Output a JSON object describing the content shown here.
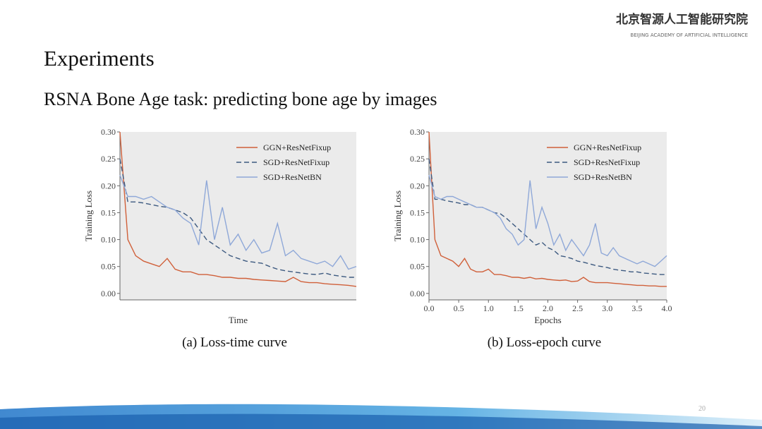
{
  "header": {
    "org": "北京智源人工智能研究院",
    "org_en": "BEIJING ACADEMY OF ARTIFICIAL INTELLIGENCE"
  },
  "title": "Experiments",
  "subtitle": "RSNA Bone Age task: predicting bone age by images",
  "page_number": "20",
  "chart_data": [
    {
      "type": "line",
      "caption": "(a) Loss-time curve",
      "x_label": "Time",
      "y_label": "Training Loss",
      "ylim": [
        -0.012,
        0.3
      ],
      "yticks": [
        {
          "value": 0,
          "label": "0.00"
        },
        {
          "value": 0.05,
          "label": "0.05"
        },
        {
          "value": 0.1,
          "label": "0.10"
        },
        {
          "value": 0.15,
          "label": "0.15"
        },
        {
          "value": 0.2,
          "label": "0.20"
        },
        {
          "value": 0.25,
          "label": "0.25"
        },
        {
          "value": 0.3,
          "label": "0.30"
        }
      ],
      "legend": "upper right",
      "series": [
        {
          "name": "GGN+ResNetFixup",
          "color": "#d0603a",
          "dash": false,
          "values": [
            0.3,
            0.1,
            0.07,
            0.06,
            0.055,
            0.05,
            0.065,
            0.045,
            0.04,
            0.04,
            0.035,
            0.035,
            0.033,
            0.03,
            0.03,
            0.028,
            0.028,
            0.026,
            0.025,
            0.024,
            0.023,
            0.022,
            0.03,
            0.022,
            0.02,
            0.02,
            0.018,
            0.017,
            0.016,
            0.015,
            0.013
          ]
        },
        {
          "name": "SGD+ResNetFixup",
          "color": "#3d5a80",
          "dash": true,
          "values": [
            0.25,
            0.17,
            0.17,
            0.168,
            0.165,
            0.162,
            0.16,
            0.155,
            0.15,
            0.14,
            0.12,
            0.1,
            0.09,
            0.08,
            0.07,
            0.065,
            0.06,
            0.058,
            0.056,
            0.05,
            0.045,
            0.042,
            0.04,
            0.038,
            0.036,
            0.035,
            0.038,
            0.034,
            0.032,
            0.03,
            0.03
          ]
        },
        {
          "name": "SGD+ResNetBN",
          "color": "#8fa8d8",
          "dash": false,
          "values": [
            0.22,
            0.18,
            0.18,
            0.175,
            0.18,
            0.17,
            0.16,
            0.155,
            0.14,
            0.13,
            0.09,
            0.21,
            0.1,
            0.16,
            0.09,
            0.11,
            0.08,
            0.1,
            0.075,
            0.08,
            0.13,
            0.07,
            0.08,
            0.065,
            0.06,
            0.055,
            0.06,
            0.05,
            0.07,
            0.045,
            0.05
          ]
        }
      ]
    },
    {
      "type": "line",
      "caption": "(b) Loss-epoch curve",
      "x_label": "Epochs",
      "y_label": "Training Loss",
      "xlim": [
        0,
        4
      ],
      "ylim": [
        -0.012,
        0.3
      ],
      "xticks": [
        {
          "value": 0,
          "label": "0.0"
        },
        {
          "value": 0.5,
          "label": "0.5"
        },
        {
          "value": 1,
          "label": "1.0"
        },
        {
          "value": 1.5,
          "label": "1.5"
        },
        {
          "value": 2,
          "label": "2.0"
        },
        {
          "value": 2.5,
          "label": "2.5"
        },
        {
          "value": 3,
          "label": "3.0"
        },
        {
          "value": 3.5,
          "label": "3.5"
        },
        {
          "value": 4,
          "label": "4.0"
        }
      ],
      "yticks": [
        {
          "value": 0,
          "label": "0.00"
        },
        {
          "value": 0.05,
          "label": "0.05"
        },
        {
          "value": 0.1,
          "label": "0.10"
        },
        {
          "value": 0.15,
          "label": "0.15"
        },
        {
          "value": 0.2,
          "label": "0.20"
        },
        {
          "value": 0.25,
          "label": "0.25"
        },
        {
          "value": 0.3,
          "label": "0.30"
        }
      ],
      "legend": "upper right",
      "x": [
        0,
        0.1,
        0.2,
        0.3,
        0.4,
        0.5,
        0.6,
        0.7,
        0.8,
        0.9,
        1,
        1.1,
        1.2,
        1.3,
        1.4,
        1.5,
        1.6,
        1.7,
        1.8,
        1.9,
        2,
        2.1,
        2.2,
        2.3,
        2.4,
        2.5,
        2.6,
        2.7,
        2.8,
        2.9,
        3,
        3.1,
        3.2,
        3.3,
        3.4,
        3.5,
        3.6,
        3.7,
        3.8,
        3.9,
        4
      ],
      "series": [
        {
          "name": "GGN+ResNetFixup",
          "color": "#d0603a",
          "dash": false,
          "values": [
            0.3,
            0.1,
            0.07,
            0.065,
            0.06,
            0.05,
            0.065,
            0.045,
            0.04,
            0.04,
            0.045,
            0.035,
            0.035,
            0.033,
            0.03,
            0.03,
            0.028,
            0.03,
            0.027,
            0.028,
            0.026,
            0.025,
            0.024,
            0.025,
            0.022,
            0.023,
            0.03,
            0.022,
            0.02,
            0.02,
            0.02,
            0.019,
            0.018,
            0.017,
            0.016,
            0.015,
            0.015,
            0.014,
            0.014,
            0.013,
            0.013
          ]
        },
        {
          "name": "SGD+ResNetFixup",
          "color": "#3d5a80",
          "dash": true,
          "values": [
            0.25,
            0.175,
            0.175,
            0.172,
            0.17,
            0.168,
            0.165,
            0.165,
            0.16,
            0.16,
            0.155,
            0.15,
            0.148,
            0.14,
            0.13,
            0.12,
            0.11,
            0.1,
            0.09,
            0.095,
            0.085,
            0.08,
            0.07,
            0.068,
            0.065,
            0.06,
            0.058,
            0.055,
            0.052,
            0.05,
            0.048,
            0.045,
            0.043,
            0.042,
            0.04,
            0.04,
            0.038,
            0.037,
            0.036,
            0.035,
            0.035
          ]
        },
        {
          "name": "SGD+ResNetBN",
          "color": "#8fa8d8",
          "dash": false,
          "values": [
            0.22,
            0.18,
            0.175,
            0.18,
            0.18,
            0.175,
            0.17,
            0.165,
            0.16,
            0.16,
            0.155,
            0.15,
            0.14,
            0.12,
            0.11,
            0.09,
            0.1,
            0.21,
            0.12,
            0.16,
            0.13,
            0.09,
            0.11,
            0.08,
            0.1,
            0.085,
            0.07,
            0.09,
            0.13,
            0.075,
            0.07,
            0.085,
            0.07,
            0.065,
            0.06,
            0.055,
            0.06,
            0.055,
            0.05,
            0.06,
            0.07
          ]
        }
      ]
    }
  ]
}
